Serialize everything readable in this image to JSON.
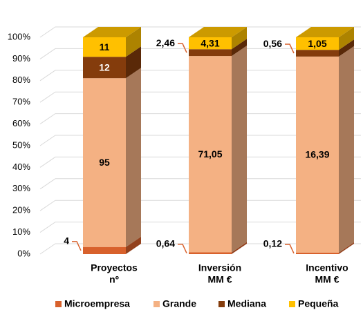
{
  "chart_data": {
    "type": "bar",
    "stacking": "percent",
    "categories": [
      [
        "Proyectos",
        "nº"
      ],
      [
        "Inversión",
        "MM €"
      ],
      [
        "Incentivo",
        "MM €"
      ]
    ],
    "series": [
      {
        "name": "Microempresa",
        "color": "#d8612c",
        "values": [
          4,
          0.64,
          0.12
        ],
        "value_labels": [
          "4",
          "0,64",
          "0,12"
        ]
      },
      {
        "name": "Grande",
        "color": "#f4b183",
        "values": [
          95,
          71.05,
          16.39
        ],
        "value_labels": [
          "95",
          "71,05",
          "16,39"
        ]
      },
      {
        "name": "Mediana",
        "color": "#843c0c",
        "values": [
          12,
          2.46,
          0.56
        ],
        "value_labels": [
          "12",
          "2,46",
          "0,56"
        ]
      },
      {
        "name": "Pequeña",
        "color": "#ffc000",
        "values": [
          11,
          4.31,
          1.05
        ],
        "value_labels": [
          "11",
          "4,31",
          "1,05"
        ]
      }
    ],
    "ylim": [
      0,
      100
    ],
    "yticks": [
      {
        "value": 0,
        "label": "0%"
      },
      {
        "value": 10,
        "label": "10%"
      },
      {
        "value": 20,
        "label": "20%"
      },
      {
        "value": 30,
        "label": "30%"
      },
      {
        "value": 40,
        "label": "40%"
      },
      {
        "value": 50,
        "label": "50%"
      },
      {
        "value": 60,
        "label": "60%"
      },
      {
        "value": 70,
        "label": "70%"
      },
      {
        "value": 80,
        "label": "80%"
      },
      {
        "value": 90,
        "label": "90%"
      },
      {
        "value": 100,
        "label": "100%"
      }
    ],
    "grid": true,
    "legend": "bottom"
  }
}
